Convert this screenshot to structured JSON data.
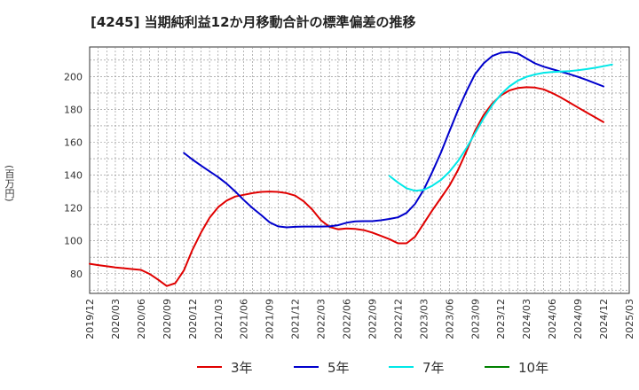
{
  "chart_data": {
    "type": "line",
    "title": "[4245]  当期純利益12か月移動合計の標準偏差の推移",
    "ylabel": "(百万円)",
    "xlabel": "",
    "ylim": [
      68,
      218
    ],
    "yticks": [
      80,
      100,
      120,
      140,
      160,
      180,
      200
    ],
    "xticks": [
      "2019/12",
      "2020/03",
      "2020/06",
      "2020/09",
      "2020/12",
      "2021/03",
      "2021/06",
      "2021/09",
      "2021/12",
      "2022/03",
      "2022/06",
      "2022/09",
      "2022/12",
      "2023/03",
      "2023/06",
      "2023/09",
      "2023/12",
      "2024/03",
      "2024/06",
      "2024/09",
      "2024/12",
      "2025/03"
    ],
    "grid": true,
    "legend_position": "bottom",
    "series": [
      {
        "name": "3年",
        "color": "#e00000",
        "points": [
          [
            "2019/12",
            86
          ],
          [
            "2020/01",
            85.2
          ],
          [
            "2020/02",
            84.5
          ],
          [
            "2020/03",
            83.8
          ],
          [
            "2020/04",
            83.3
          ],
          [
            "2020/05",
            82.8
          ],
          [
            "2020/06",
            82.3
          ],
          [
            "2020/07",
            79.8
          ],
          [
            "2020/08",
            76.3
          ],
          [
            "2020/09",
            72.5
          ],
          [
            "2020/10",
            74.2
          ],
          [
            "2020/11",
            82
          ],
          [
            "2020/12",
            94.5
          ],
          [
            "2021/01",
            105
          ],
          [
            "2021/02",
            114
          ],
          [
            "2021/03",
            120.5
          ],
          [
            "2021/04",
            124.5
          ],
          [
            "2021/05",
            127
          ],
          [
            "2021/06",
            128
          ],
          [
            "2021/07",
            129
          ],
          [
            "2021/08",
            129.8
          ],
          [
            "2021/09",
            130
          ],
          [
            "2021/10",
            129.8
          ],
          [
            "2021/11",
            129
          ],
          [
            "2021/12",
            127.5
          ],
          [
            "2022/01",
            124
          ],
          [
            "2022/02",
            119
          ],
          [
            "2022/03",
            112.5
          ],
          [
            "2022/04",
            108.5
          ],
          [
            "2022/05",
            107
          ],
          [
            "2022/06",
            107.5
          ],
          [
            "2022/07",
            107.2
          ],
          [
            "2022/08",
            106.5
          ],
          [
            "2022/09",
            105
          ],
          [
            "2022/10",
            103
          ],
          [
            "2022/11",
            101
          ],
          [
            "2022/12",
            98.5
          ],
          [
            "2023/01",
            98.5
          ],
          [
            "2023/02",
            102.5
          ],
          [
            "2023/03",
            110.5
          ],
          [
            "2023/04",
            118.5
          ],
          [
            "2023/05",
            126
          ],
          [
            "2023/06",
            133.5
          ],
          [
            "2023/07",
            143
          ],
          [
            "2023/08",
            154.5
          ],
          [
            "2023/09",
            167
          ],
          [
            "2023/10",
            176.5
          ],
          [
            "2023/11",
            183.5
          ],
          [
            "2023/12",
            188.5
          ],
          [
            "2024/01",
            191.5
          ],
          [
            "2024/02",
            193
          ],
          [
            "2024/03",
            193.5
          ],
          [
            "2024/04",
            193.3
          ],
          [
            "2024/05",
            192.2
          ],
          [
            "2024/06",
            190
          ],
          [
            "2024/07",
            187.3
          ],
          [
            "2024/08",
            184.3
          ],
          [
            "2024/09",
            181.2
          ],
          [
            "2024/10",
            178.2
          ],
          [
            "2024/11",
            175.2
          ],
          [
            "2024/12",
            172.3
          ]
        ]
      },
      {
        "name": "5年",
        "color": "#0000cc",
        "points": [
          [
            "2020/11",
            153.5
          ],
          [
            "2020/12",
            149.5
          ],
          [
            "2021/01",
            145.8
          ],
          [
            "2021/02",
            142.3
          ],
          [
            "2021/03",
            138.8
          ],
          [
            "2021/04",
            134.8
          ],
          [
            "2021/05",
            130
          ],
          [
            "2021/06",
            124.8
          ],
          [
            "2021/07",
            120
          ],
          [
            "2021/08",
            115.8
          ],
          [
            "2021/09",
            111.3
          ],
          [
            "2021/10",
            108.8
          ],
          [
            "2021/11",
            108.2
          ],
          [
            "2021/12",
            108.5
          ],
          [
            "2022/01",
            108.7
          ],
          [
            "2022/02",
            108.7
          ],
          [
            "2022/03",
            108.7
          ],
          [
            "2022/04",
            108.8
          ],
          [
            "2022/05",
            109.5
          ],
          [
            "2022/06",
            111
          ],
          [
            "2022/07",
            111.8
          ],
          [
            "2022/08",
            112
          ],
          [
            "2022/09",
            112
          ],
          [
            "2022/10",
            112.5
          ],
          [
            "2022/11",
            113.3
          ],
          [
            "2022/12",
            114.3
          ],
          [
            "2023/01",
            117
          ],
          [
            "2023/02",
            122.5
          ],
          [
            "2023/03",
            131
          ],
          [
            "2023/04",
            141.8
          ],
          [
            "2023/05",
            153.5
          ],
          [
            "2023/06",
            166.5
          ],
          [
            "2023/07",
            179.5
          ],
          [
            "2023/08",
            191
          ],
          [
            "2023/09",
            201.5
          ],
          [
            "2023/10",
            208
          ],
          [
            "2023/11",
            212.5
          ],
          [
            "2023/12",
            214.5
          ],
          [
            "2024/01",
            215
          ],
          [
            "2024/02",
            214
          ],
          [
            "2024/03",
            211
          ],
          [
            "2024/04",
            208
          ],
          [
            "2024/05",
            206
          ],
          [
            "2024/06",
            204.5
          ],
          [
            "2024/07",
            203
          ],
          [
            "2024/08",
            201.5
          ],
          [
            "2024/09",
            199.8
          ],
          [
            "2024/10",
            198
          ],
          [
            "2024/11",
            196
          ],
          [
            "2024/12",
            194
          ]
        ]
      },
      {
        "name": "7年",
        "color": "#00e8e8",
        "points": [
          [
            "2022/11",
            139.5
          ],
          [
            "2022/12",
            135.5
          ],
          [
            "2023/01",
            132
          ],
          [
            "2023/02",
            130.5
          ],
          [
            "2023/03",
            131
          ],
          [
            "2023/04",
            133.5
          ],
          [
            "2023/05",
            137
          ],
          [
            "2023/06",
            142
          ],
          [
            "2023/07",
            148.5
          ],
          [
            "2023/08",
            156.5
          ],
          [
            "2023/09",
            165.5
          ],
          [
            "2023/10",
            174.5
          ],
          [
            "2023/11",
            182.5
          ],
          [
            "2023/12",
            189
          ],
          [
            "2024/01",
            194
          ],
          [
            "2024/02",
            197.5
          ],
          [
            "2024/03",
            199.8
          ],
          [
            "2024/04",
            201.3
          ],
          [
            "2024/05",
            202.3
          ],
          [
            "2024/06",
            202.8
          ],
          [
            "2024/07",
            203
          ],
          [
            "2024/08",
            203.3
          ],
          [
            "2024/09",
            203.8
          ],
          [
            "2024/10",
            204.5
          ],
          [
            "2024/11",
            205.3
          ],
          [
            "2024/12",
            206.3
          ],
          [
            "2025/01",
            207.3
          ]
        ]
      },
      {
        "name": "10年",
        "color": "#008000",
        "points": []
      }
    ]
  }
}
